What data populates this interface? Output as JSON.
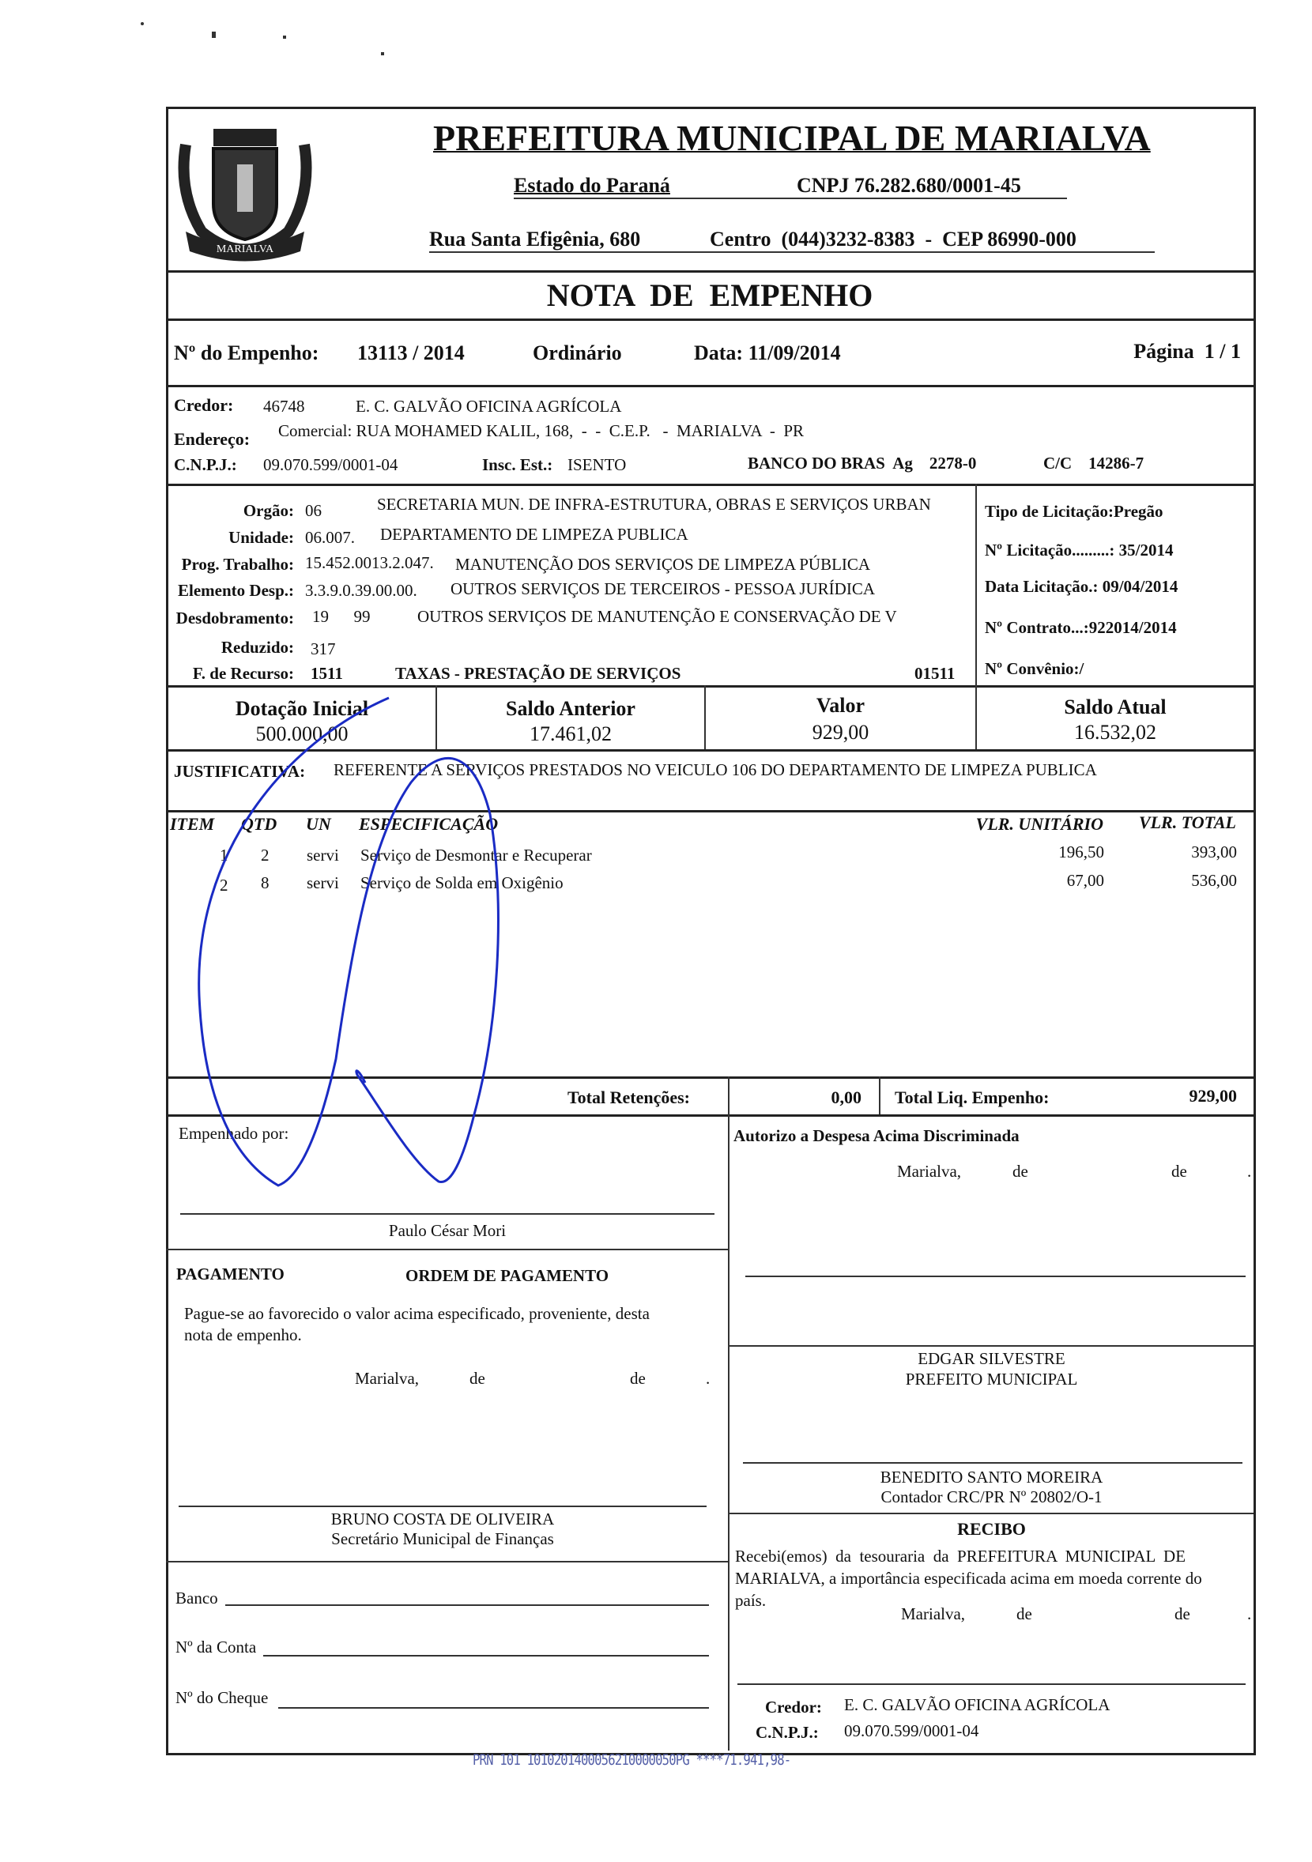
{
  "header": {
    "title": "PREFEITURA MUNICIPAL DE MARIALVA",
    "state": "Estado do Paraná",
    "cnpj": "CNPJ 76.282.680/0001-45",
    "address": "Rua Santa Efigênia, 680",
    "district_phone_cep": "Centro  (044)3232-8383  -  CEP 86990-000",
    "coat_of_arms_text": "MARIALVA"
  },
  "doc_title": "NOTA  DE  EMPENHO",
  "empenho": {
    "number_label": "Nº do Empenho:",
    "number": "13113 / 2014",
    "type": "Ordinário",
    "date": "Data: 11/09/2014",
    "page": "Página  1 / 1"
  },
  "credor": {
    "label": "Credor:",
    "code": "46748",
    "name": "E. C. GALVÃO OFICINA AGRÍCOLA",
    "address_label": "Endereço:",
    "address": "Comercial: RUA MOHAMED KALIL, 168,  -  -  C.E.P.   -  MARIALVA  -  PR",
    "cnpj_label": "C.N.P.J.:",
    "cnpj": "09.070.599/0001-04",
    "insc_label": "Insc. Est.:",
    "insc": "ISENTO",
    "bank": "BANCO DO BRAS  Ag    2278-0",
    "cc": "C/C    14286-7"
  },
  "budget": {
    "rows": [
      {
        "label": "Orgão:",
        "code": "06",
        "desc": "SECRETARIA MUN. DE INFRA-ESTRUTURA, OBRAS E SERVIÇOS URBAN"
      },
      {
        "label": "Unidade:",
        "code": "06.007.",
        "desc": "DEPARTAMENTO DE LIMPEZA PUBLICA"
      },
      {
        "label": "Prog. Trabalho:",
        "code": "15.452.0013.2.047.",
        "desc": "MANUTENÇÃO DOS SERVIÇOS DE LIMPEZA PÚBLICA"
      },
      {
        "label": "Elemento Desp.:",
        "code": "3.3.9.0.39.00.00.",
        "desc": "OUTROS SERVIÇOS DE TERCEIROS - PESSOA JURÍDICA"
      },
      {
        "label": "Desdobramento:",
        "code": "19      99",
        "desc": "OUTROS SERVIÇOS DE MANUTENÇÃO E CONSERVAÇÃO DE V"
      },
      {
        "label": "Reduzido:",
        "code": "317",
        "desc": ""
      },
      {
        "label": "F. de Recurso:",
        "code": "1511",
        "desc": "TAXAS - PRESTAÇÃO DE SERVIÇOS",
        "extra": "01511"
      }
    ],
    "licitacao": [
      "Tipo de Licitação:Pregão",
      "Nº Licitação.........: 35/2014",
      "Data Licitação.: 09/04/2014",
      "Nº Contrato...:922014/2014",
      "Nº Convênio:/"
    ]
  },
  "balances": [
    {
      "label": "Dotação Inicial",
      "value": "500.000,00"
    },
    {
      "label": "Saldo Anterior",
      "value": "17.461,02"
    },
    {
      "label": "Valor",
      "value": "929,00"
    },
    {
      "label": "Saldo Atual",
      "value": "16.532,02"
    }
  ],
  "justificativa": {
    "label": "JUSTIFICATIVA:",
    "text": "REFERENTE A SERVIÇOS PRESTADOS NO VEICULO 106 DO DEPARTAMENTO DE LIMPEZA PUBLICA"
  },
  "items": {
    "headers": {
      "item": "ITEM",
      "qtd": "QTD",
      "un": "UN",
      "spec": "ESPECIFICAÇÃO",
      "unit": "VLR. UNITÁRIO",
      "total": "VLR. TOTAL"
    },
    "rows": [
      {
        "item": "1",
        "qtd": "2",
        "un": "servi",
        "spec": "Serviço de Desmontar e Recuperar",
        "unit": "196,50",
        "total": "393,00"
      },
      {
        "item": "2",
        "qtd": "8",
        "un": "servi",
        "spec": "Serviço de Solda em Oxigênio",
        "unit": "67,00",
        "total": "536,00"
      }
    ]
  },
  "totals": {
    "ret_label": "Total Retenções:",
    "ret_value": "0,00",
    "liq_label": "Total Liq. Empenho:",
    "liq_value": "929,00"
  },
  "empenhado": {
    "label": "Empenhado por:",
    "name": "Paulo César Mori"
  },
  "autorizo": {
    "label": "Autorizo a Despesa Acima Discriminada",
    "place": "Marialva,",
    "de1": "de",
    "de2": "de",
    "dot": "."
  },
  "pagamento": {
    "label": "PAGAMENTO",
    "title": "ORDEM DE PAGAMENTO",
    "text1": "Pague-se ao favorecido o valor acima especificado, proveniente, desta",
    "text2": "nota de empenho.",
    "place": "Marialva,",
    "de1": "de",
    "de2": "de",
    "dot": ".",
    "signer": "BRUNO COSTA DE OLIVEIRA",
    "signer_role": "Secretário Municipal de Finanças"
  },
  "prefeito": {
    "name": "EDGAR SILVESTRE",
    "role": "PREFEITO MUNICIPAL"
  },
  "contador": {
    "name": "BENEDITO SANTO MOREIRA",
    "role": "Contador CRC/PR Nº 20802/O-1"
  },
  "recibo": {
    "title": "RECIBO",
    "line1": "Recebi(emos)  da  tesouraria  da  PREFEITURA  MUNICIPAL  DE",
    "line2": "MARIALVA, a importância especificada acima em moeda corrente do",
    "line3": "país.",
    "place": "Marialva,",
    "de1": "de",
    "de2": "de",
    "dot": ".",
    "credor_label": "Credor:",
    "credor": "E. C. GALVÃO OFICINA AGRÍCOLA",
    "cnpj_label": "C.N.P.J.:",
    "cnpj": "09.070.599/0001-04"
  },
  "bank_fields": {
    "banco": "Banco",
    "conta": "Nº da Conta",
    "cheque": "Nº do Cheque"
  },
  "machine_print": "PRN 101 1010201400056210000050PG ****71.941,98-",
  "colors": {
    "ink": "#111111",
    "signature": "#1a2bc4",
    "machine_print": "#5560a8"
  }
}
